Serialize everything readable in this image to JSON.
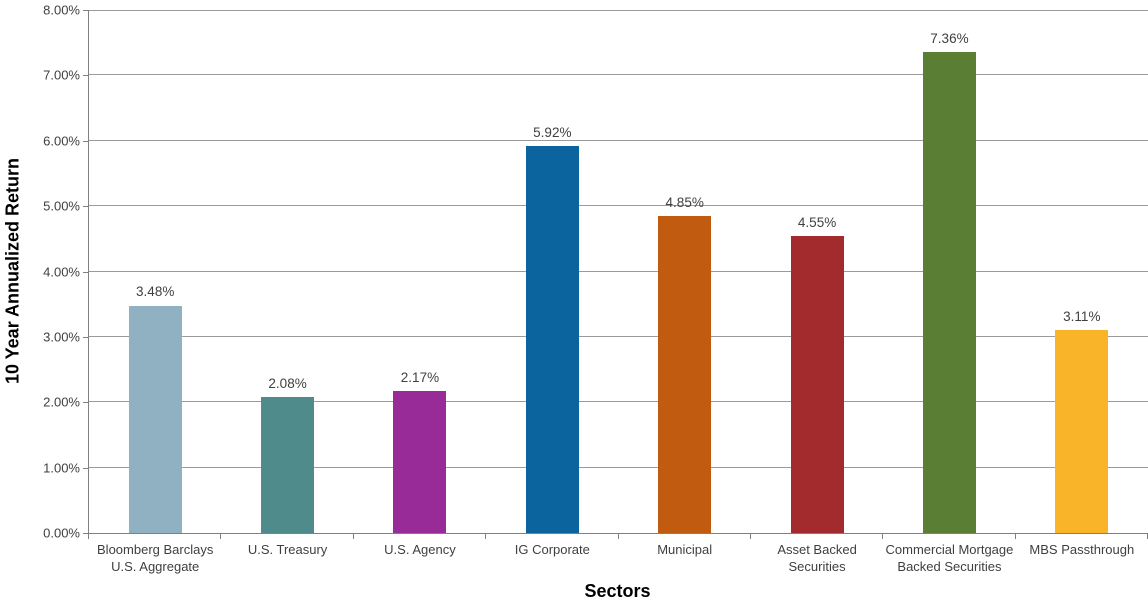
{
  "chart_data": {
    "type": "bar",
    "title": "",
    "xlabel": "Sectors",
    "ylabel": "10 Year Annualized Return",
    "categories": [
      "Bloomberg Barclays U.S. Aggregate",
      "U.S. Treasury",
      "U.S. Agency",
      "IG Corporate",
      "Municipal",
      "Asset Backed Securities",
      "Commercial Mortgage Backed Securities",
      "MBS Passthrough"
    ],
    "values": [
      3.48,
      2.08,
      2.17,
      5.92,
      4.85,
      4.55,
      7.36,
      3.11
    ],
    "value_labels": [
      "3.48%",
      "2.08%",
      "2.17%",
      "5.92%",
      "4.85%",
      "4.55%",
      "7.36%",
      "3.11%"
    ],
    "bar_colors": [
      "#8FB1C1",
      "#4F8B8B",
      "#982B98",
      "#0B649D",
      "#C05B10",
      "#A42B2D",
      "#5A7E33",
      "#F9B42A"
    ],
    "yticks": [
      "0.00%",
      "1.00%",
      "2.00%",
      "3.00%",
      "4.00%",
      "5.00%",
      "6.00%",
      "7.00%",
      "8.00%"
    ],
    "ylim": [
      0,
      8
    ],
    "grid": true,
    "gridline_color": "#9B9B9B",
    "axis_color": "#808080",
    "legend": "none"
  }
}
